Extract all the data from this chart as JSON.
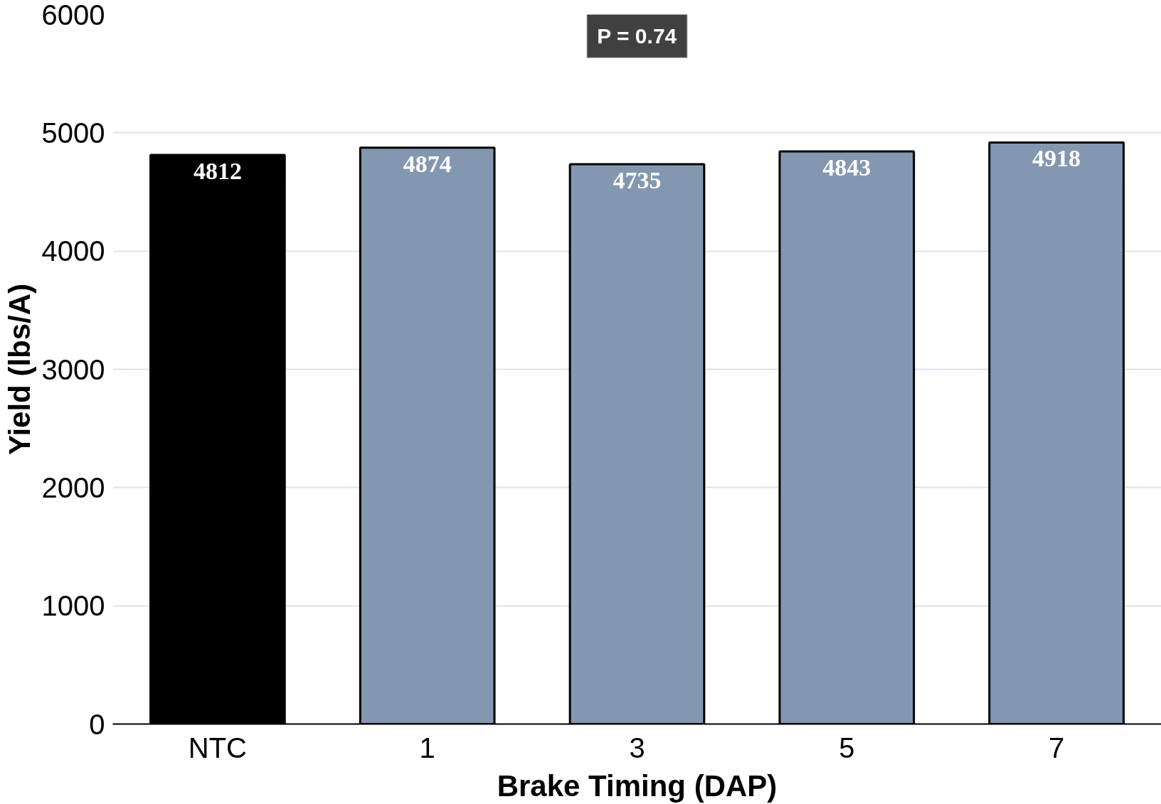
{
  "chart_data": {
    "type": "bar",
    "xlabel": "Brake Timing (DAP)",
    "ylabel": "Yield (lbs/A)",
    "categories": [
      "NTC",
      "1",
      "3",
      "5",
      "7"
    ],
    "values": [
      4812,
      4874,
      4735,
      4843,
      4918
    ],
    "colors": [
      "#000000",
      "#8497b0",
      "#8497b0",
      "#8497b0",
      "#8497b0"
    ],
    "ylim": [
      0,
      6000
    ],
    "yticks": [
      0,
      1000,
      2000,
      3000,
      4000,
      5000,
      6000
    ],
    "grid": "y",
    "data_labels": true,
    "annotations": [
      "P = 0.74"
    ]
  }
}
